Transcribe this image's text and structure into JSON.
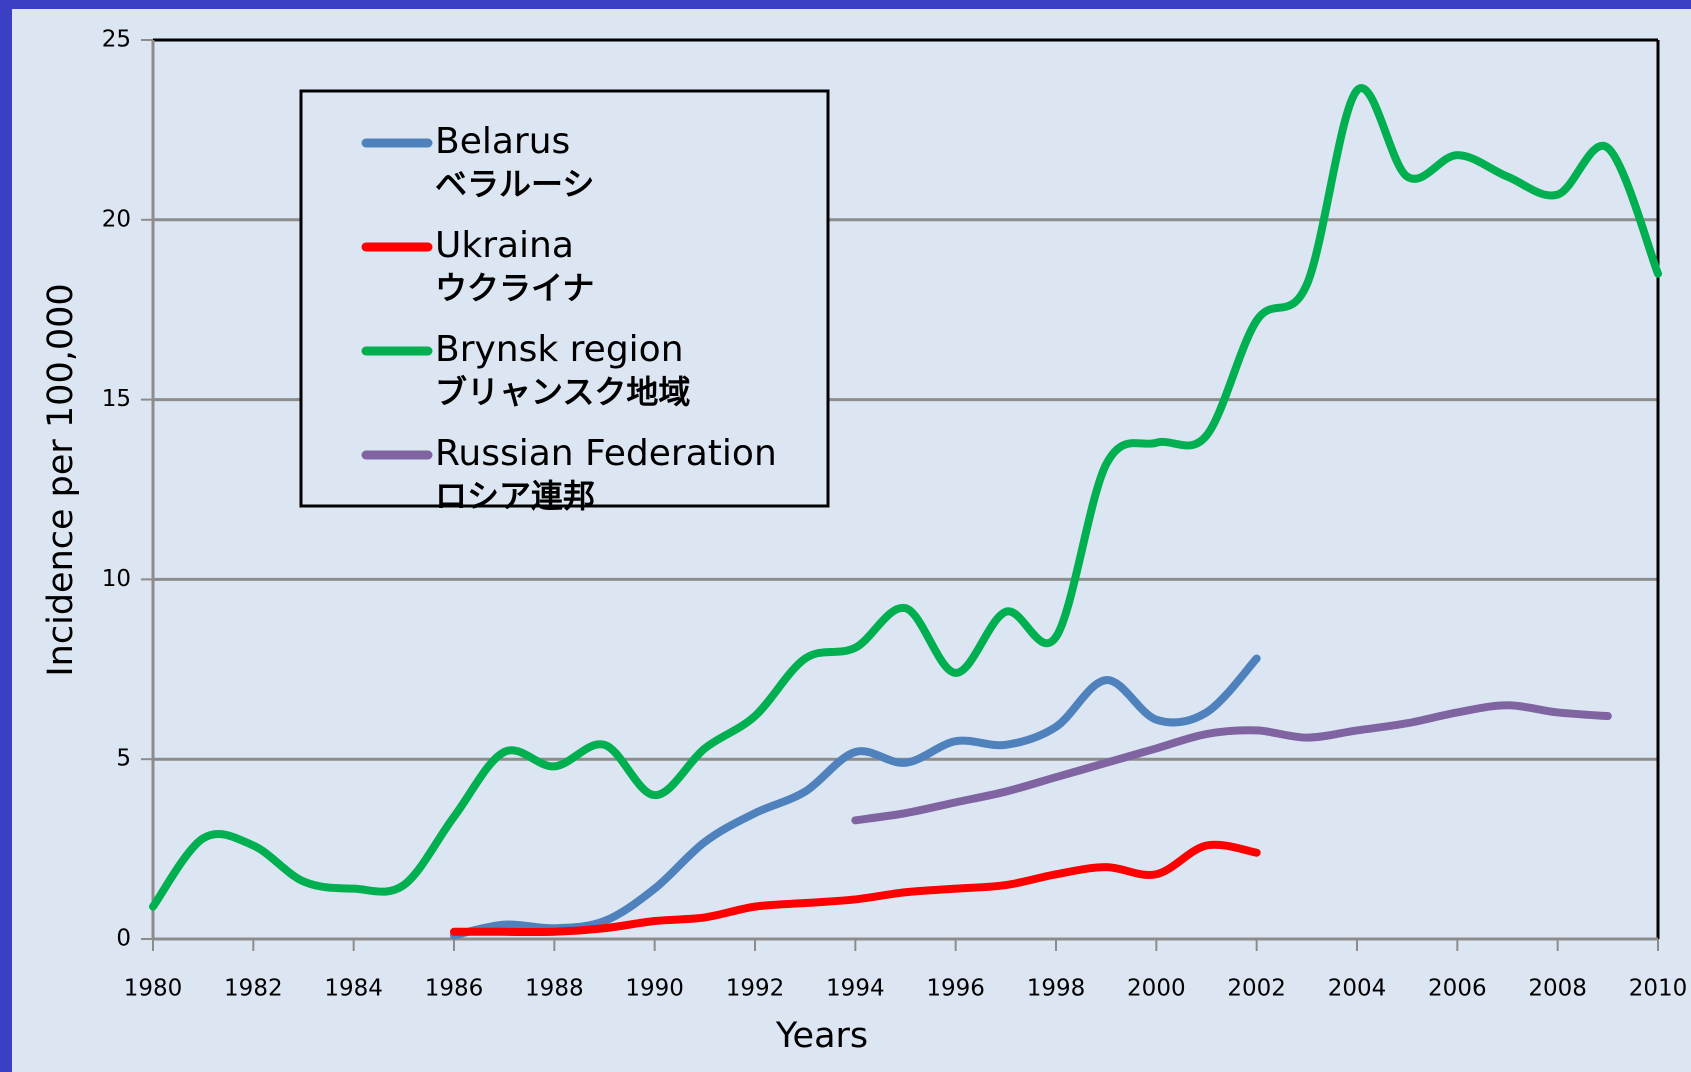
{
  "chart_data": {
    "type": "line",
    "x_label": "Years",
    "y_label": "Incidence per 100,000",
    "x": [
      1980,
      1981,
      1982,
      1983,
      1984,
      1985,
      1986,
      1987,
      1988,
      1989,
      1990,
      1991,
      1992,
      1993,
      1994,
      1995,
      1996,
      1997,
      1998,
      1999,
      2000,
      2001,
      2002,
      2003,
      2004,
      2005,
      2006,
      2007,
      2008,
      2009,
      2010
    ],
    "series": [
      {
        "name": "Belarus",
        "name_ja": "ベラルーシ",
        "color": "#4f81bd",
        "values": [
          null,
          null,
          null,
          null,
          null,
          null,
          0.1,
          0.4,
          0.3,
          0.5,
          1.4,
          2.7,
          3.5,
          4.1,
          5.2,
          4.9,
          5.5,
          5.4,
          5.9,
          7.2,
          6.1,
          6.3,
          7.8,
          null,
          null,
          null,
          null,
          null,
          null,
          null,
          null
        ]
      },
      {
        "name": "Ukraina",
        "name_ja": "ウクライナ",
        "color": "#ff0000",
        "values": [
          null,
          null,
          null,
          null,
          null,
          null,
          0.2,
          0.2,
          0.2,
          0.3,
          0.5,
          0.6,
          0.9,
          1.0,
          1.1,
          1.3,
          1.4,
          1.5,
          1.8,
          2.0,
          1.8,
          2.6,
          2.4,
          null,
          null,
          null,
          null,
          null,
          null,
          null,
          null
        ]
      },
      {
        "name": "Brynsk region",
        "name_ja": "ブリャンスク地域",
        "color": "#00b050",
        "values": [
          0.9,
          2.8,
          2.6,
          1.6,
          1.4,
          1.5,
          3.4,
          5.2,
          4.8,
          5.4,
          4.0,
          5.3,
          6.2,
          7.8,
          8.1,
          9.2,
          7.4,
          9.1,
          8.4,
          13.2,
          13.8,
          14.0,
          17.2,
          18.2,
          23.6,
          21.2,
          21.8,
          21.2,
          20.7,
          22.0,
          18.5
        ]
      },
      {
        "name": "Russian Federation",
        "name_ja": "ロシア連邦",
        "color": "#8064a2",
        "values": [
          null,
          null,
          null,
          null,
          null,
          null,
          null,
          null,
          null,
          null,
          null,
          null,
          null,
          null,
          3.3,
          3.5,
          3.8,
          4.1,
          4.5,
          4.9,
          5.3,
          5.7,
          5.8,
          5.6,
          5.8,
          6.0,
          6.3,
          6.5,
          6.3,
          6.2,
          null
        ]
      }
    ],
    "xlim": [
      1980,
      2010
    ],
    "xticks": [
      1980,
      1982,
      1984,
      1986,
      1988,
      1990,
      1992,
      1994,
      1996,
      1998,
      2000,
      2002,
      2004,
      2006,
      2008,
      2010
    ],
    "ylim": [
      0,
      25
    ],
    "yticks": [
      0,
      5,
      10,
      15,
      20,
      25
    ],
    "grid": true,
    "legend": "upper left"
  }
}
